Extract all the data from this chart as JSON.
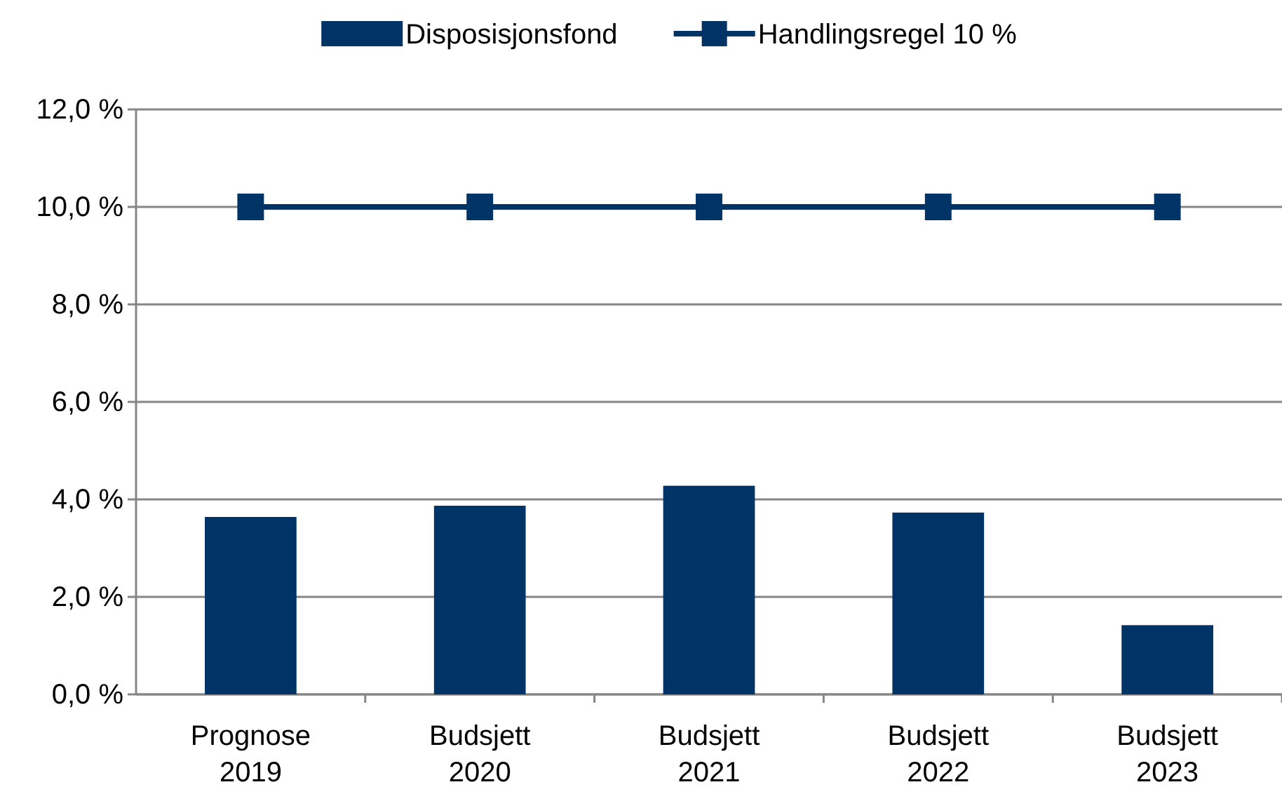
{
  "chart_data": {
    "type": "bar",
    "categories": [
      "Prognose 2019",
      "Budsjett 2020",
      "Budsjett 2021",
      "Budsjett 2022",
      "Budsjett 2023"
    ],
    "series": [
      {
        "name": "Disposisjonsfond",
        "color": "#003366",
        "values": [
          3.64,
          3.87,
          4.28,
          3.73,
          1.42
        ]
      },
      {
        "name": "Handlingsregel 10 %",
        "type": "line",
        "color": "#003366",
        "marker": "square",
        "values": [
          10,
          10,
          10,
          10,
          10
        ]
      }
    ],
    "ylim": [
      0,
      12
    ],
    "yticks": [
      {
        "value": 0,
        "label": "0,0 %"
      },
      {
        "value": 2,
        "label": "2,0 %"
      },
      {
        "value": 4,
        "label": "4,0 %"
      },
      {
        "value": 6,
        "label": "6,0 %"
      },
      {
        "value": 8,
        "label": "8,0 %"
      },
      {
        "value": 10,
        "label": "10,0 %"
      },
      {
        "value": 12,
        "label": "12,0 %"
      }
    ],
    "grid": "y",
    "legend": "top"
  }
}
